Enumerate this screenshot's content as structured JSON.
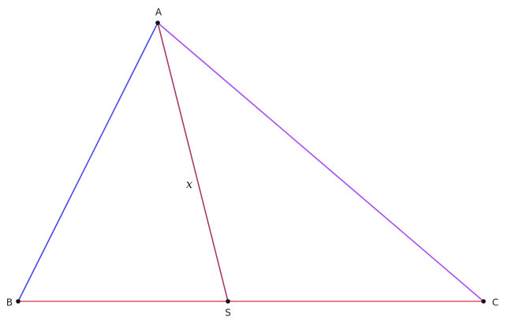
{
  "points": [
    {
      "label": "A"
    },
    {
      "label": "B"
    },
    {
      "label": "C"
    },
    {
      "label": "S"
    }
  ],
  "segments": [
    {
      "label": "x"
    }
  ]
}
